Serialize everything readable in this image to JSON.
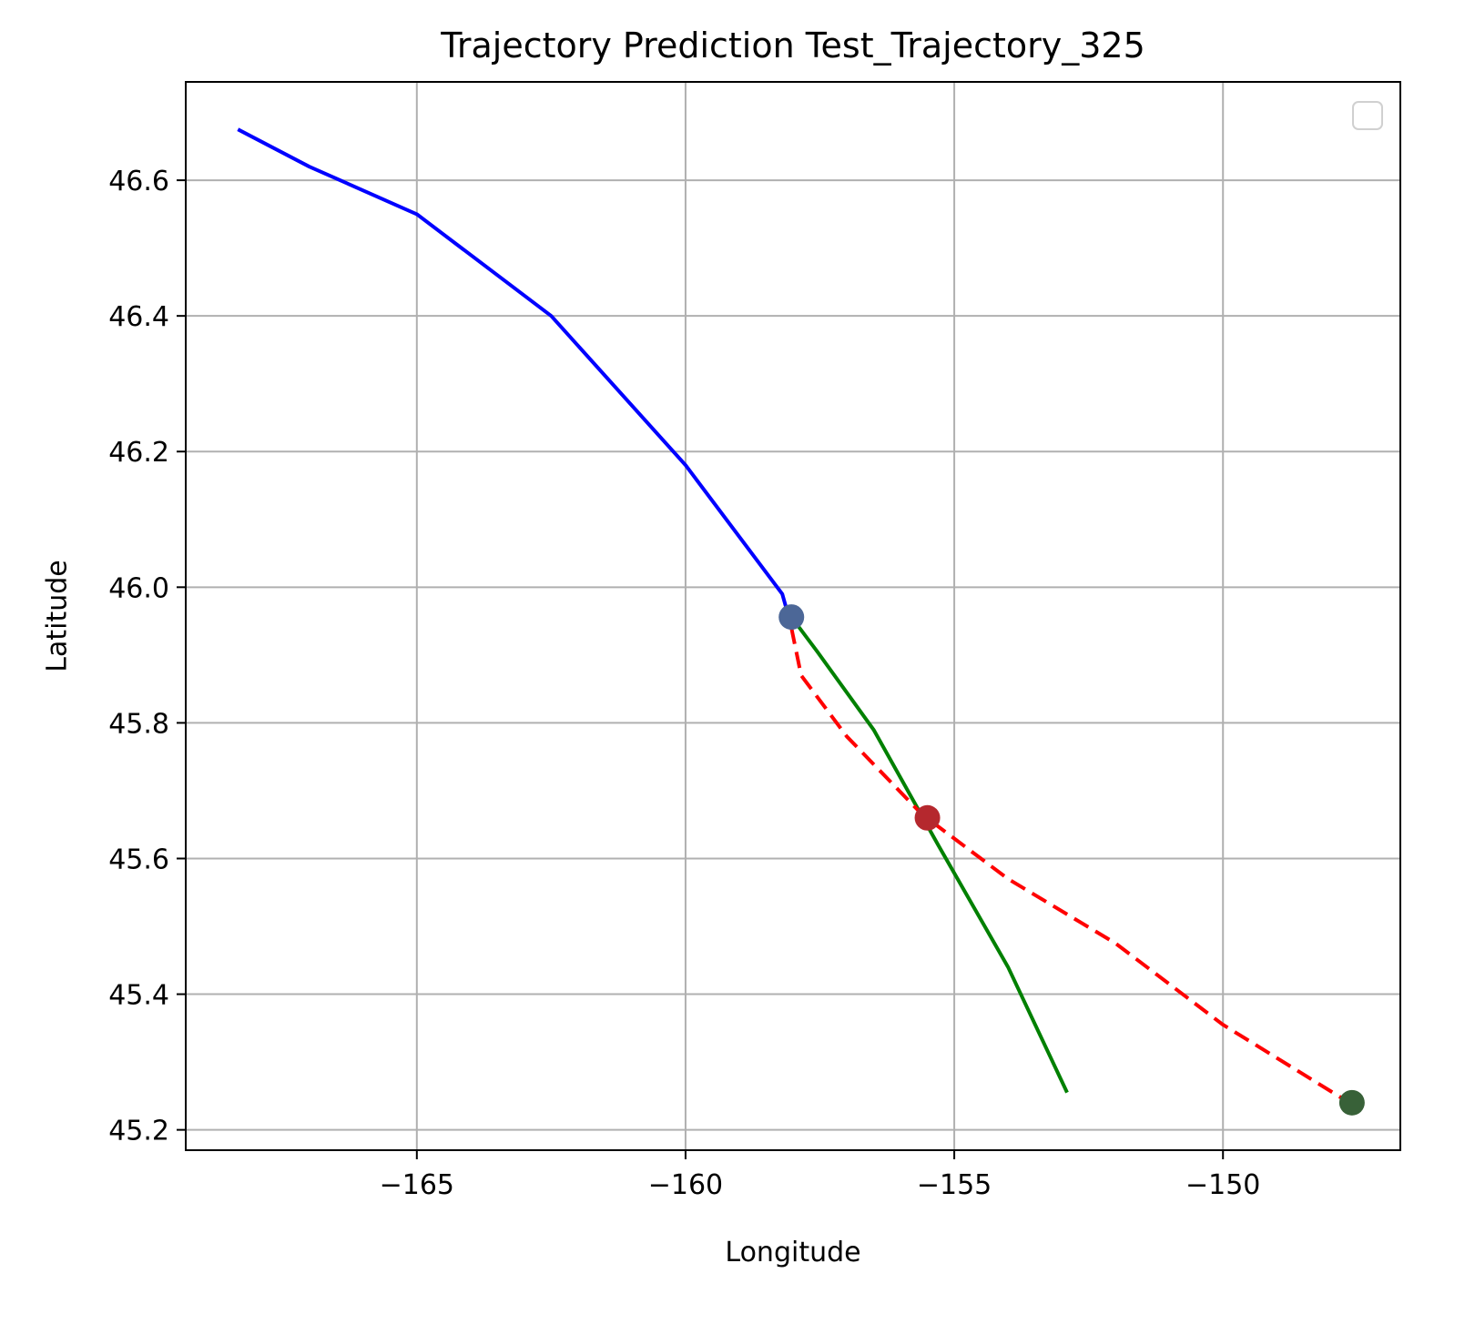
{
  "chart_data": {
    "type": "line",
    "title": "Trajectory Prediction Test_Trajectory_325",
    "xlabel": "Longitude",
    "ylabel": "Latitude",
    "xlim": [
      -169.3,
      -146.7
    ],
    "ylim": [
      45.17,
      46.745
    ],
    "xticks": [
      -165,
      -160,
      -155,
      -150
    ],
    "xtick_labels": [
      "−165",
      "−160",
      "−155",
      "−150"
    ],
    "yticks": [
      45.2,
      45.4,
      45.6,
      45.8,
      46.0,
      46.2,
      46.4,
      46.6
    ],
    "ytick_labels": [
      "45.2",
      "45.4",
      "45.6",
      "45.8",
      "46.0",
      "46.2",
      "46.4",
      "46.6"
    ],
    "grid": true,
    "legend": "top-right (empty)",
    "series": [
      {
        "style": "solid",
        "color": "#0000ff",
        "x": [
          -168.33,
          -167.0,
          -165.0,
          -162.5,
          -160.0,
          -158.2,
          -158.08
        ],
        "y": [
          46.675,
          46.62,
          46.55,
          46.4,
          46.18,
          45.99,
          45.956
        ]
      },
      {
        "style": "solid",
        "color": "#008000",
        "x": [
          -158.03,
          -157.55,
          -156.5,
          -155.3,
          -154.0,
          -152.9
        ],
        "y": [
          45.956,
          45.905,
          45.79,
          45.62,
          45.44,
          45.255
        ]
      },
      {
        "style": "dashed",
        "color": "#ff0000",
        "x": [
          -158.03,
          -157.85,
          -157.0,
          -155.6,
          -154.0,
          -152.0,
          -150.0,
          -147.65
        ],
        "y": [
          45.94,
          45.87,
          45.78,
          45.665,
          45.57,
          45.475,
          45.355,
          45.24
        ]
      }
    ],
    "points": [
      {
        "x": -158.03,
        "y": 45.956,
        "color": "#4c6797"
      },
      {
        "x": -155.5,
        "y": 45.66,
        "color": "#b5282e"
      },
      {
        "x": -147.6,
        "y": 45.24,
        "color": "#386138"
      }
    ]
  }
}
